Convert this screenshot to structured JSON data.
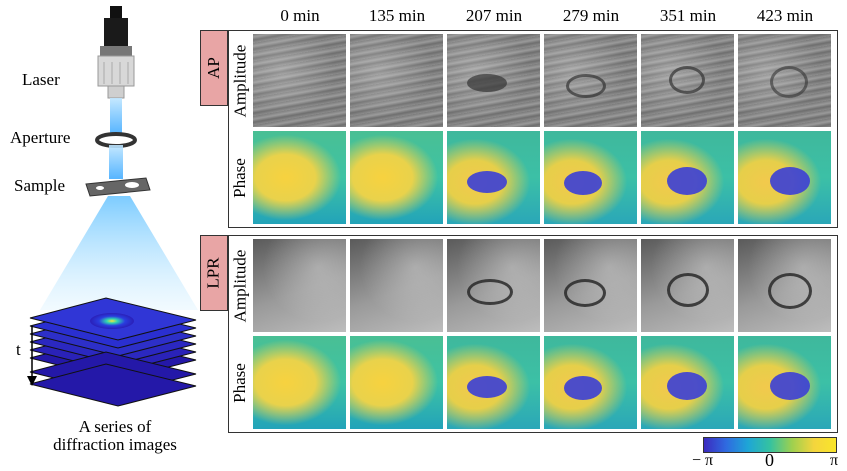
{
  "setup": {
    "laser_label": "Laser",
    "aperture_label": "Aperture",
    "sample_label": "Sample",
    "time_label": "t",
    "caption_line1": "A  series of",
    "caption_line2": "diffraction images"
  },
  "columns": [
    "0 min",
    "135 min",
    "207 min",
    "279 min",
    "351 min",
    "423 min"
  ],
  "panels": [
    {
      "method": "AP",
      "rows": [
        "Amplitude",
        "Phase"
      ]
    },
    {
      "method": "LPR",
      "rows": [
        "Amplitude",
        "Phase"
      ]
    }
  ],
  "colorbar": {
    "min_label": "− π",
    "mid_label": "0",
    "max_label": "π",
    "colors": [
      "#3b2bbf",
      "#2f6ae0",
      "#1ea6d6",
      "#35c2a0",
      "#9ed04f",
      "#f4d53d",
      "#f9e52a"
    ]
  }
}
